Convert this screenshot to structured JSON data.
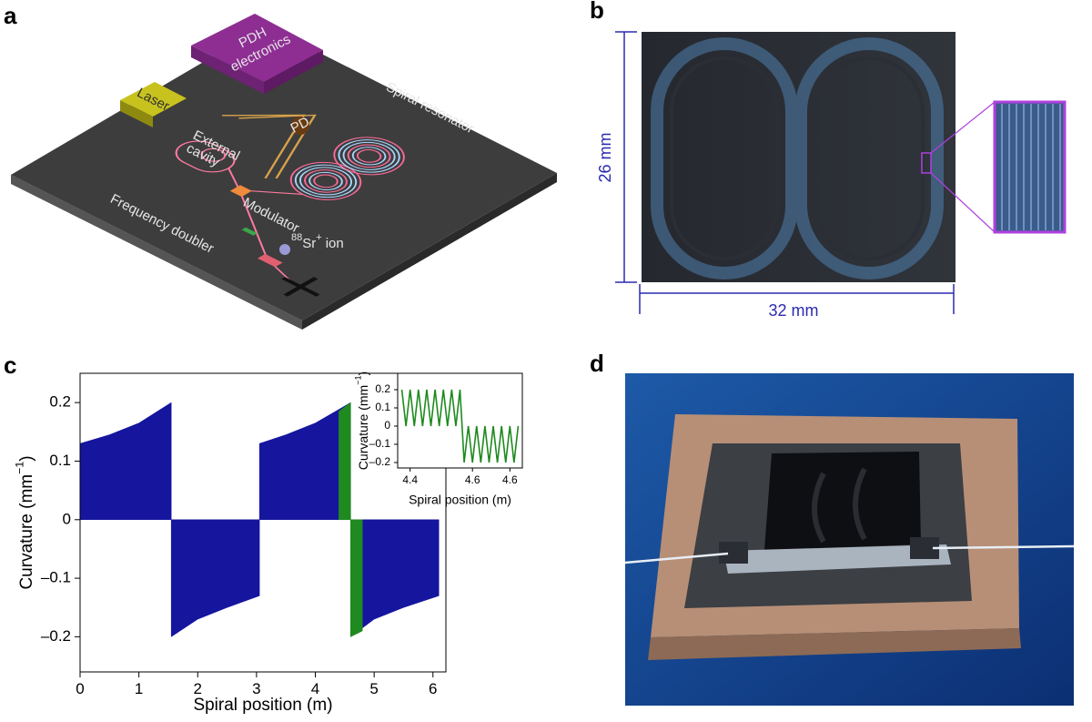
{
  "figure": {
    "a": {
      "label": "a",
      "pdh_line1": "PDH",
      "pdh_line2": "electronics",
      "laser": "Laser",
      "cavity_line1": "External",
      "cavity_line2": "cavity",
      "pd": "PD",
      "spiral": "Spiral resonator",
      "modulator": "Modulator",
      "doubler": "Frequency doubler",
      "ion_mass": "88",
      "ion_symbol": "Sr",
      "ion_charge": "+",
      "ion_word": "ion"
    },
    "b": {
      "label": "b",
      "height": "26 mm",
      "width": "32 mm"
    },
    "c": {
      "label": "c"
    },
    "d": {
      "label": "d"
    }
  },
  "chart_data": [
    {
      "type": "area",
      "xlabel": "Spiral position (m)",
      "ylabel": "Curvature (mm",
      "ylabel_exp": "−1",
      "ylabel_close": ")",
      "xlim": [
        0,
        6.22
      ],
      "ylim": [
        -0.26,
        0.25
      ],
      "xticks": [
        0,
        1,
        2,
        3,
        4,
        5,
        6
      ],
      "yticks": [
        {
          "value": -0.2,
          "label": "–0.2"
        },
        {
          "value": -0.1,
          "label": "–0.1"
        },
        0,
        0.1,
        0.2
      ],
      "series": [
        {
          "color": "#15159e",
          "x": [
            0,
            0.5,
            1.0,
            1.55,
            1.55,
            2.0,
            2.5,
            3.05,
            3.05,
            3.5,
            4.0,
            4.6,
            4.6,
            5.0,
            5.5,
            6.1
          ],
          "values": [
            0.13,
            0.145,
            0.165,
            0.2,
            -0.2,
            -0.17,
            -0.15,
            -0.13,
            0.13,
            0.145,
            0.165,
            0.2,
            -0.2,
            -0.17,
            -0.15,
            -0.13
          ]
        },
        {
          "color": "#1f8a1f",
          "x": [
            4.4,
            4.6,
            4.6,
            4.8
          ],
          "values": [
            0.185,
            0.2,
            -0.2,
            -0.19
          ]
        }
      ]
    },
    {
      "type": "line",
      "xlabel": "Spiral position (m)",
      "ylabel": "Curvature (mm",
      "ylabel_exp": "−1",
      "ylabel_close": ")",
      "xlim": [
        4.37,
        4.67
      ],
      "ylim": [
        -0.23,
        0.29
      ],
      "xticks": [
        4.4,
        {
          "value": 4.55,
          "label": "4.6"
        },
        {
          "value": 4.64,
          "label": "4.6"
        }
      ],
      "yticks": [
        {
          "value": -0.2,
          "label": "–0.2"
        },
        {
          "value": -0.1,
          "label": "–0.1"
        },
        0,
        0.1,
        0.2
      ],
      "series": [
        {
          "color": "#1f8a1f",
          "x": [
            4.38,
            4.39,
            4.4,
            4.41,
            4.42,
            4.43,
            4.44,
            4.45,
            4.46,
            4.47,
            4.48,
            4.49,
            4.5,
            4.51,
            4.52,
            4.53,
            4.54,
            4.55,
            4.56,
            4.57,
            4.58,
            4.59,
            4.6,
            4.61,
            4.62,
            4.63,
            4.64,
            4.65,
            4.66
          ],
          "values": [
            0.2,
            0,
            0.2,
            0,
            0.2,
            0,
            0.2,
            0,
            0.2,
            0,
            0.2,
            0,
            0.2,
            0,
            0.2,
            -0.2,
            0,
            -0.2,
            0,
            -0.2,
            0,
            -0.2,
            0,
            -0.2,
            0,
            -0.2,
            0,
            -0.2,
            0
          ]
        }
      ]
    }
  ]
}
